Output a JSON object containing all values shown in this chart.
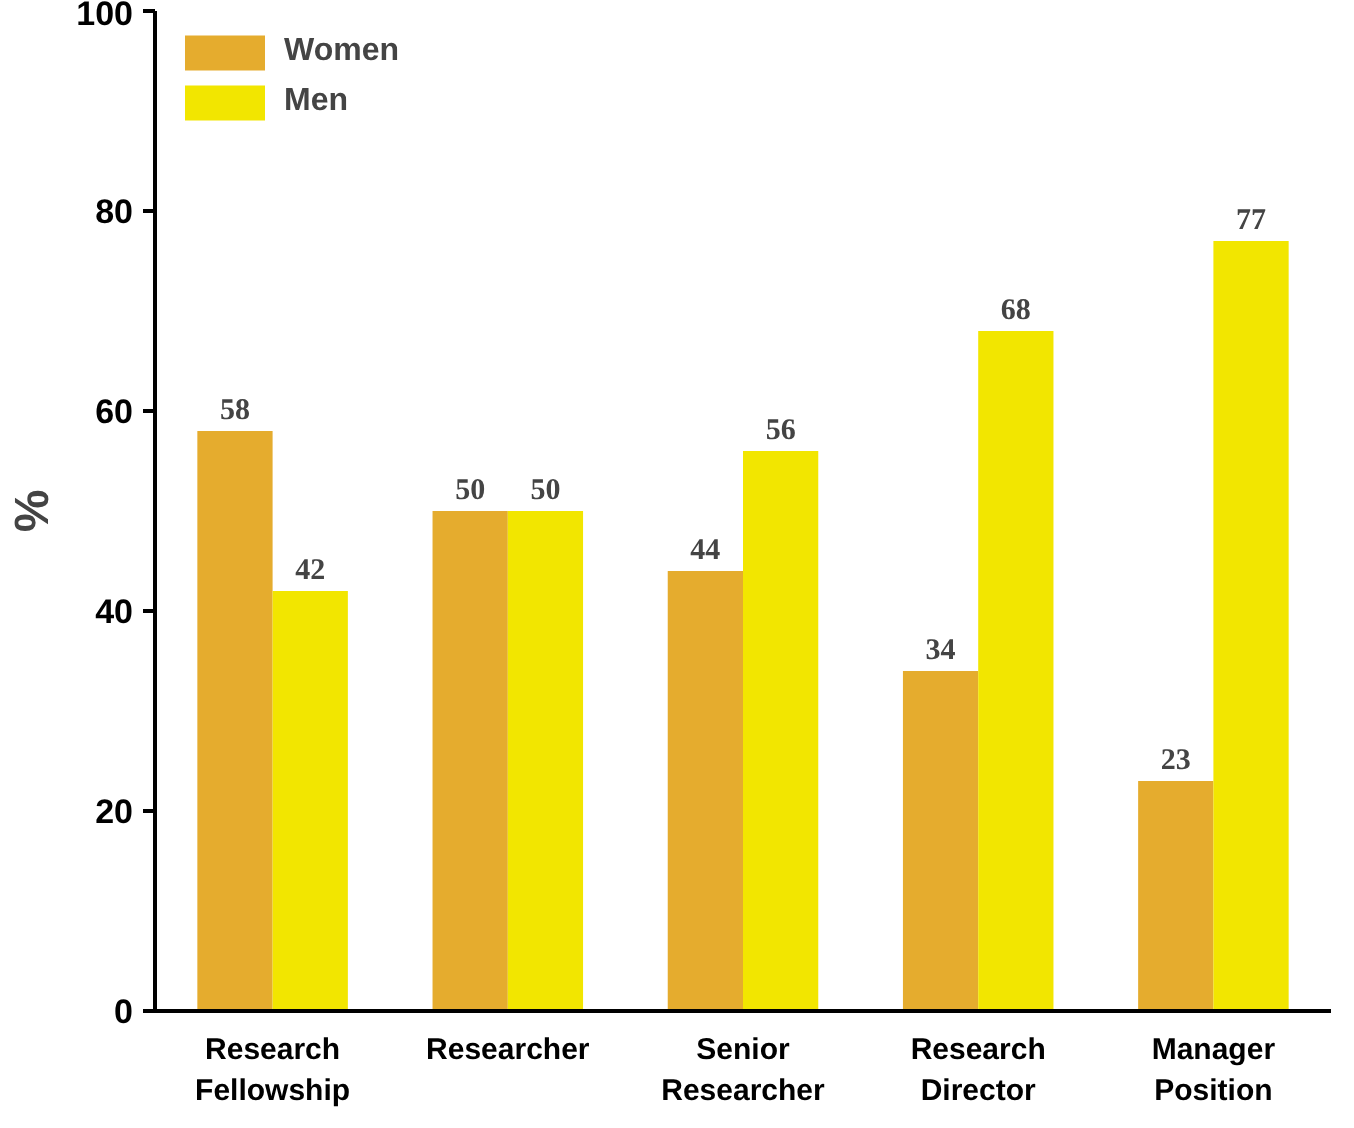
{
  "chart_data": {
    "type": "bar",
    "ylabel": "%",
    "categories": [
      "Research\nFellowship",
      "Researcher",
      "Senior\nResearcher",
      "Research\nDirector",
      "Manager\nPosition"
    ],
    "series": [
      {
        "name": "Women",
        "color": "#e5ac2e",
        "values": [
          58,
          50,
          44,
          34,
          23
        ]
      },
      {
        "name": "Men",
        "color": "#f2e600",
        "values": [
          42,
          50,
          56,
          68,
          77
        ]
      }
    ],
    "ylim": [
      0,
      100
    ],
    "yticks": [
      0,
      20,
      40,
      60,
      80,
      100
    ],
    "grid": false,
    "legend": "top left",
    "data_labels": true
  }
}
